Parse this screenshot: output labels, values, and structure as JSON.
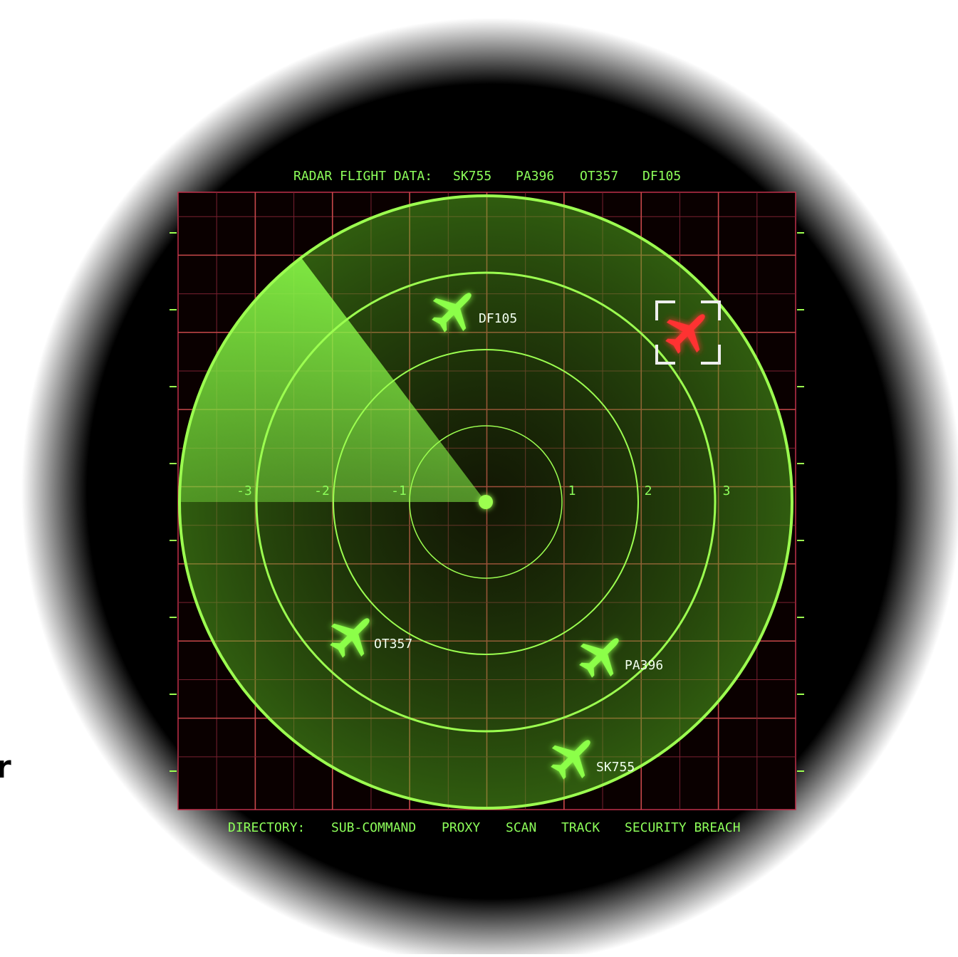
{
  "header": {
    "title": "RADAR FLIGHT DATA:",
    "flights": [
      "SK755",
      "PA396",
      "OT357",
      "DF105"
    ]
  },
  "radar": {
    "axis_labels": [
      "-3",
      "-2",
      "-1",
      "1",
      "2",
      "3"
    ],
    "targets": [
      {
        "label": "DF105"
      },
      {
        "label": "OT357"
      },
      {
        "label": "PA396"
      },
      {
        "label": "SK755"
      }
    ]
  },
  "footer": {
    "title": "DIRECTORY:",
    "items": [
      "SUB-COMMAND",
      "PROXY",
      "SCAN",
      "TRACK",
      "SECURITY BREACH"
    ]
  },
  "edge_text": "r"
}
